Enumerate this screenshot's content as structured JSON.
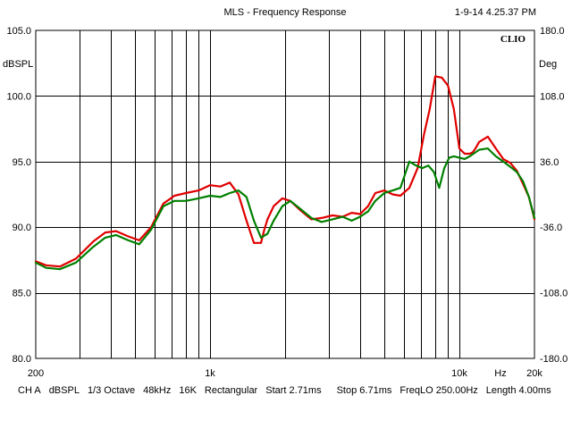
{
  "header": {
    "title": "MLS - Frequency Response",
    "timestamp": "1-9-14 4.25.37 PM"
  },
  "brand": "CLIO",
  "chart_data": {
    "type": "line",
    "title": "MLS - Frequency Response",
    "x_scale": "log",
    "xlim": [
      200,
      20000
    ],
    "ylim": [
      80,
      105
    ],
    "y2lim": [
      -180,
      180
    ],
    "grid": true,
    "ylabel": "dBSPL",
    "y2label": "Deg",
    "xunit": "Hz",
    "x_tick_labels": [
      {
        "value": 200,
        "label": "200"
      },
      {
        "value": 1000,
        "label": "1k"
      },
      {
        "value": 10000,
        "label": "10k"
      },
      {
        "value": 20000,
        "label": "20k"
      }
    ],
    "y_ticks": [
      {
        "value": 105,
        "label": "105.0"
      },
      {
        "value": 100,
        "label": "100.0"
      },
      {
        "value": 95,
        "label": "95.0"
      },
      {
        "value": 90,
        "label": "90.0"
      },
      {
        "value": 85,
        "label": "85.0"
      },
      {
        "value": 80,
        "label": "80.0"
      }
    ],
    "y2_ticks": [
      {
        "value": 180,
        "label": "180.0"
      },
      {
        "value": 108,
        "label": "108.0"
      },
      {
        "value": 36,
        "label": "36.0"
      },
      {
        "value": -36,
        "label": "-36.0"
      },
      {
        "value": -108,
        "label": "-108.0"
      },
      {
        "value": -180,
        "label": "-180.0"
      }
    ],
    "series": [
      {
        "color": "#e00000",
        "x": [
          200,
          220,
          250,
          290,
          340,
          380,
          420,
          470,
          520,
          580,
          650,
          720,
          800,
          900,
          1000,
          1100,
          1200,
          1300,
          1400,
          1500,
          1600,
          1650,
          1700,
          1800,
          1950,
          2100,
          2300,
          2550,
          2800,
          3100,
          3400,
          3700,
          4000,
          4300,
          4600,
          5000,
          5400,
          5800,
          6300,
          6800,
          7200,
          7600,
          8000,
          8500,
          9000,
          9500,
          10000,
          10500,
          11000,
          11300,
          11600,
          12000,
          13000,
          14000,
          15000,
          16000,
          17000,
          18000,
          19000,
          20000
        ],
        "values": [
          87.4,
          87.1,
          87.0,
          87.6,
          88.9,
          89.6,
          89.7,
          89.3,
          89.0,
          90.0,
          91.8,
          92.4,
          92.6,
          92.8,
          93.2,
          93.1,
          93.4,
          92.5,
          90.5,
          88.8,
          88.8,
          89.8,
          90.6,
          91.6,
          92.2,
          92.0,
          91.3,
          90.6,
          90.7,
          90.9,
          90.8,
          91.1,
          91.0,
          91.6,
          92.6,
          92.8,
          92.5,
          92.4,
          93.0,
          94.5,
          97.0,
          99.0,
          101.5,
          101.4,
          100.8,
          99.0,
          96.0,
          95.6,
          95.6,
          95.7,
          96.0,
          96.5,
          96.9,
          96.0,
          95.2,
          94.9,
          94.3,
          93.3,
          92.3,
          90.6
        ]
      },
      {
        "color": "#008000",
        "x": [
          200,
          220,
          250,
          290,
          340,
          380,
          420,
          470,
          520,
          580,
          650,
          720,
          800,
          900,
          1000,
          1100,
          1200,
          1300,
          1400,
          1500,
          1600,
          1700,
          1800,
          1950,
          2100,
          2300,
          2550,
          2800,
          3100,
          3400,
          3700,
          4000,
          4300,
          4600,
          5000,
          5400,
          5800,
          6300,
          6700,
          7100,
          7500,
          7900,
          8300,
          8700,
          9100,
          9500,
          10000,
          10500,
          11000,
          12000,
          13000,
          14000,
          15000,
          16000,
          17000,
          18000,
          19000,
          20000
        ],
        "values": [
          87.3,
          86.9,
          86.8,
          87.3,
          88.5,
          89.2,
          89.4,
          89.0,
          88.7,
          89.8,
          91.6,
          92.0,
          92.0,
          92.2,
          92.4,
          92.3,
          92.6,
          92.8,
          92.3,
          90.5,
          89.2,
          89.5,
          90.5,
          91.6,
          92.0,
          91.4,
          90.7,
          90.4,
          90.6,
          90.8,
          90.5,
          90.8,
          91.2,
          92.0,
          92.6,
          92.8,
          93.0,
          95.0,
          94.7,
          94.5,
          94.7,
          94.2,
          93.0,
          94.5,
          95.3,
          95.4,
          95.3,
          95.2,
          95.4,
          95.9,
          96.0,
          95.4,
          95.0,
          94.6,
          94.2,
          93.5,
          92.3,
          90.7
        ]
      }
    ]
  },
  "footer": {
    "items": [
      "CH A",
      "dBSPL",
      "1/3 Octave",
      "48kHz",
      "16K",
      "Rectangular",
      "Start 2.71ms",
      "Stop 6.71ms",
      "FreqLO 250.00Hz",
      "Length 4.00ms"
    ]
  }
}
